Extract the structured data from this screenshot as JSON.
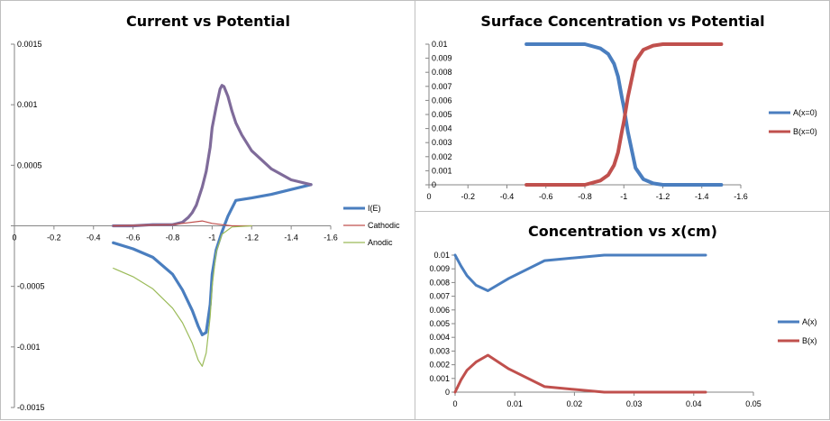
{
  "colors": {
    "blue": "#4a7ebf",
    "red": "#c0504d",
    "green": "#9bbb59",
    "purple": "#7f6b9a",
    "axis": "#868686"
  },
  "chart_data": [
    {
      "type": "line",
      "title": "Current vs Potential",
      "xlabel": "",
      "ylabel": "",
      "xlim": [
        0,
        -1.6
      ],
      "ylim": [
        -0.0015,
        0.0015
      ],
      "x_ticks": [
        0,
        -0.2,
        -0.4,
        -0.6,
        -0.8,
        -1,
        -1.2,
        -1.4,
        -1.6
      ],
      "x_tick_labels": [
        "0",
        "-0.2",
        "-0.4",
        "-0.6",
        "-0.8",
        "-1",
        "-1.2",
        "-1.4",
        "-1.6"
      ],
      "y_ticks": [
        -0.0015,
        -0.001,
        -0.0005,
        0,
        0.0005,
        0.001,
        0.0015
      ],
      "y_tick_labels": [
        "-0.0015",
        "-0.001",
        "-0.0005",
        "",
        "0.0005",
        "0.001",
        "0.0015"
      ],
      "legend_position": "right",
      "series": [
        {
          "name": "I(E)",
          "color": "#4a7ebf",
          "width": 3.2,
          "x": [
            -0.5,
            -0.6,
            -0.7,
            -0.8,
            -0.85,
            -0.9,
            -0.93,
            -0.95,
            -0.97,
            -0.99,
            -1.0,
            -1.02,
            -1.05,
            -1.08,
            -1.12,
            -1.2,
            -1.3,
            -1.4,
            -1.5
          ],
          "y": [
            -0.00014,
            -0.00019,
            -0.00026,
            -0.0004,
            -0.00053,
            -0.0007,
            -0.00083,
            -0.0009,
            -0.00088,
            -0.00065,
            -0.0004,
            -0.0002,
            -5e-05,
            8e-05,
            0.00021,
            0.00023,
            0.00026,
            0.0003,
            0.00034
          ]
        },
        {
          "name": "",
          "color": "#7f6b9a",
          "width": 3.2,
          "x": [
            -1.5,
            -1.4,
            -1.3,
            -1.2,
            -1.15,
            -1.12,
            -1.1,
            -1.08,
            -1.06,
            -1.05,
            -1.04,
            -1.02,
            -1.0,
            -0.99,
            -0.97,
            -0.95,
            -0.92,
            -0.9,
            -0.88,
            -0.85,
            -0.8,
            -0.7,
            -0.6,
            -0.5
          ],
          "y": [
            0.00034,
            0.00038,
            0.00047,
            0.00062,
            0.00075,
            0.00085,
            0.00095,
            0.00107,
            0.00115,
            0.00116,
            0.00113,
            0.00098,
            0.00081,
            0.00065,
            0.00045,
            0.00032,
            0.00017,
            0.00011,
            7e-05,
            3e-05,
            1e-05,
            1e-05,
            0.0,
            0.0
          ]
        },
        {
          "name": "Cathodic",
          "color": "#c0504d",
          "width": 1.2,
          "x": [
            -0.5,
            -0.8,
            -0.95,
            -1.0,
            -1.05,
            -1.1,
            -1.2
          ],
          "y": [
            0.0,
            1e-05,
            4e-05,
            2e-05,
            1e-05,
            0.0,
            0.0
          ]
        },
        {
          "name": "Anodic",
          "color": "#9bbb59",
          "width": 1.2,
          "x": [
            -0.5,
            -0.6,
            -0.7,
            -0.8,
            -0.85,
            -0.9,
            -0.93,
            -0.95,
            -0.97,
            -0.99,
            -1.0,
            -1.02,
            -1.05,
            -1.1,
            -1.2
          ],
          "y": [
            -0.00035,
            -0.00042,
            -0.00052,
            -0.00068,
            -0.0008,
            -0.00097,
            -0.00111,
            -0.00116,
            -0.00105,
            -0.00075,
            -0.0005,
            -0.00022,
            -7e-05,
            -1e-05,
            0.0
          ]
        }
      ]
    },
    {
      "type": "line",
      "title": "Surface Concentration vs Potential",
      "xlabel": "",
      "ylabel": "",
      "xlim": [
        0,
        -1.6
      ],
      "ylim": [
        0,
        0.01
      ],
      "x_ticks": [
        0,
        -0.2,
        -0.4,
        -0.6,
        -0.8,
        -1,
        -1.2,
        -1.4,
        -1.6
      ],
      "x_tick_labels": [
        "0",
        "-0.2",
        "-0.4",
        "-0.6",
        "-0.8",
        "-1",
        "-1.2",
        "-1.4",
        "-1.6"
      ],
      "y_ticks": [
        0,
        0.001,
        0.002,
        0.003,
        0.004,
        0.005,
        0.006,
        0.007,
        0.008,
        0.009,
        0.01
      ],
      "y_tick_labels": [
        "0",
        "0.001",
        "0.002",
        "0.003",
        "0.004",
        "0.005",
        "0.006",
        "0.007",
        "0.008",
        "0.009",
        "0.01"
      ],
      "legend_position": "right",
      "series": [
        {
          "name": "A(x=0)",
          "color": "#4a7ebf",
          "width": 4,
          "x": [
            -0.5,
            -0.8,
            -0.88,
            -0.92,
            -0.95,
            -0.97,
            -0.99,
            -1.0,
            -1.02,
            -1.04,
            -1.06,
            -1.1,
            -1.15,
            -1.2,
            -1.5
          ],
          "y": [
            0.01,
            0.01,
            0.0097,
            0.0093,
            0.0086,
            0.0077,
            0.0062,
            0.0055,
            0.0038,
            0.0025,
            0.0012,
            0.0004,
            0.0001,
            0.0,
            0.0
          ]
        },
        {
          "name": "B(x=0)",
          "color": "#c0504d",
          "width": 4,
          "x": [
            -0.5,
            -0.8,
            -0.88,
            -0.92,
            -0.95,
            -0.97,
            -0.99,
            -1.0,
            -1.02,
            -1.04,
            -1.06,
            -1.1,
            -1.15,
            -1.2,
            -1.5
          ],
          "y": [
            0.0,
            0.0,
            0.0003,
            0.0007,
            0.0014,
            0.0023,
            0.0038,
            0.0045,
            0.0062,
            0.0075,
            0.0088,
            0.0096,
            0.0099,
            0.01,
            0.01
          ]
        }
      ]
    },
    {
      "type": "line",
      "title": "Concentration vs x(cm)",
      "xlabel": "",
      "ylabel": "",
      "xlim": [
        0,
        0.05
      ],
      "ylim": [
        0,
        0.01
      ],
      "x_ticks": [
        0,
        0.01,
        0.02,
        0.03,
        0.04,
        0.05
      ],
      "x_tick_labels": [
        "0",
        "0.01",
        "0.02",
        "0.03",
        "0.04",
        "0.05"
      ],
      "y_ticks": [
        0,
        0.001,
        0.002,
        0.003,
        0.004,
        0.005,
        0.006,
        0.007,
        0.008,
        0.009,
        0.01
      ],
      "y_tick_labels": [
        "0",
        "0.001",
        "0.002",
        "0.003",
        "0.004",
        "0.005",
        "0.006",
        "0.007",
        "0.008",
        "0.009",
        "0.01"
      ],
      "legend_position": "right",
      "series": [
        {
          "name": "A(x)",
          "color": "#4a7ebf",
          "width": 3,
          "x": [
            0,
            0.001,
            0.002,
            0.0035,
            0.0055,
            0.009,
            0.015,
            0.025,
            0.042
          ],
          "y": [
            0.01,
            0.0092,
            0.0085,
            0.0078,
            0.0074,
            0.0083,
            0.0096,
            0.01,
            0.01
          ]
        },
        {
          "name": "B(x)",
          "color": "#c0504d",
          "width": 3,
          "x": [
            0,
            0.001,
            0.002,
            0.0035,
            0.0055,
            0.009,
            0.015,
            0.025,
            0.042
          ],
          "y": [
            0.0,
            0.0009,
            0.0016,
            0.0022,
            0.0027,
            0.0017,
            0.0004,
            0.0,
            0.0
          ]
        }
      ]
    }
  ]
}
